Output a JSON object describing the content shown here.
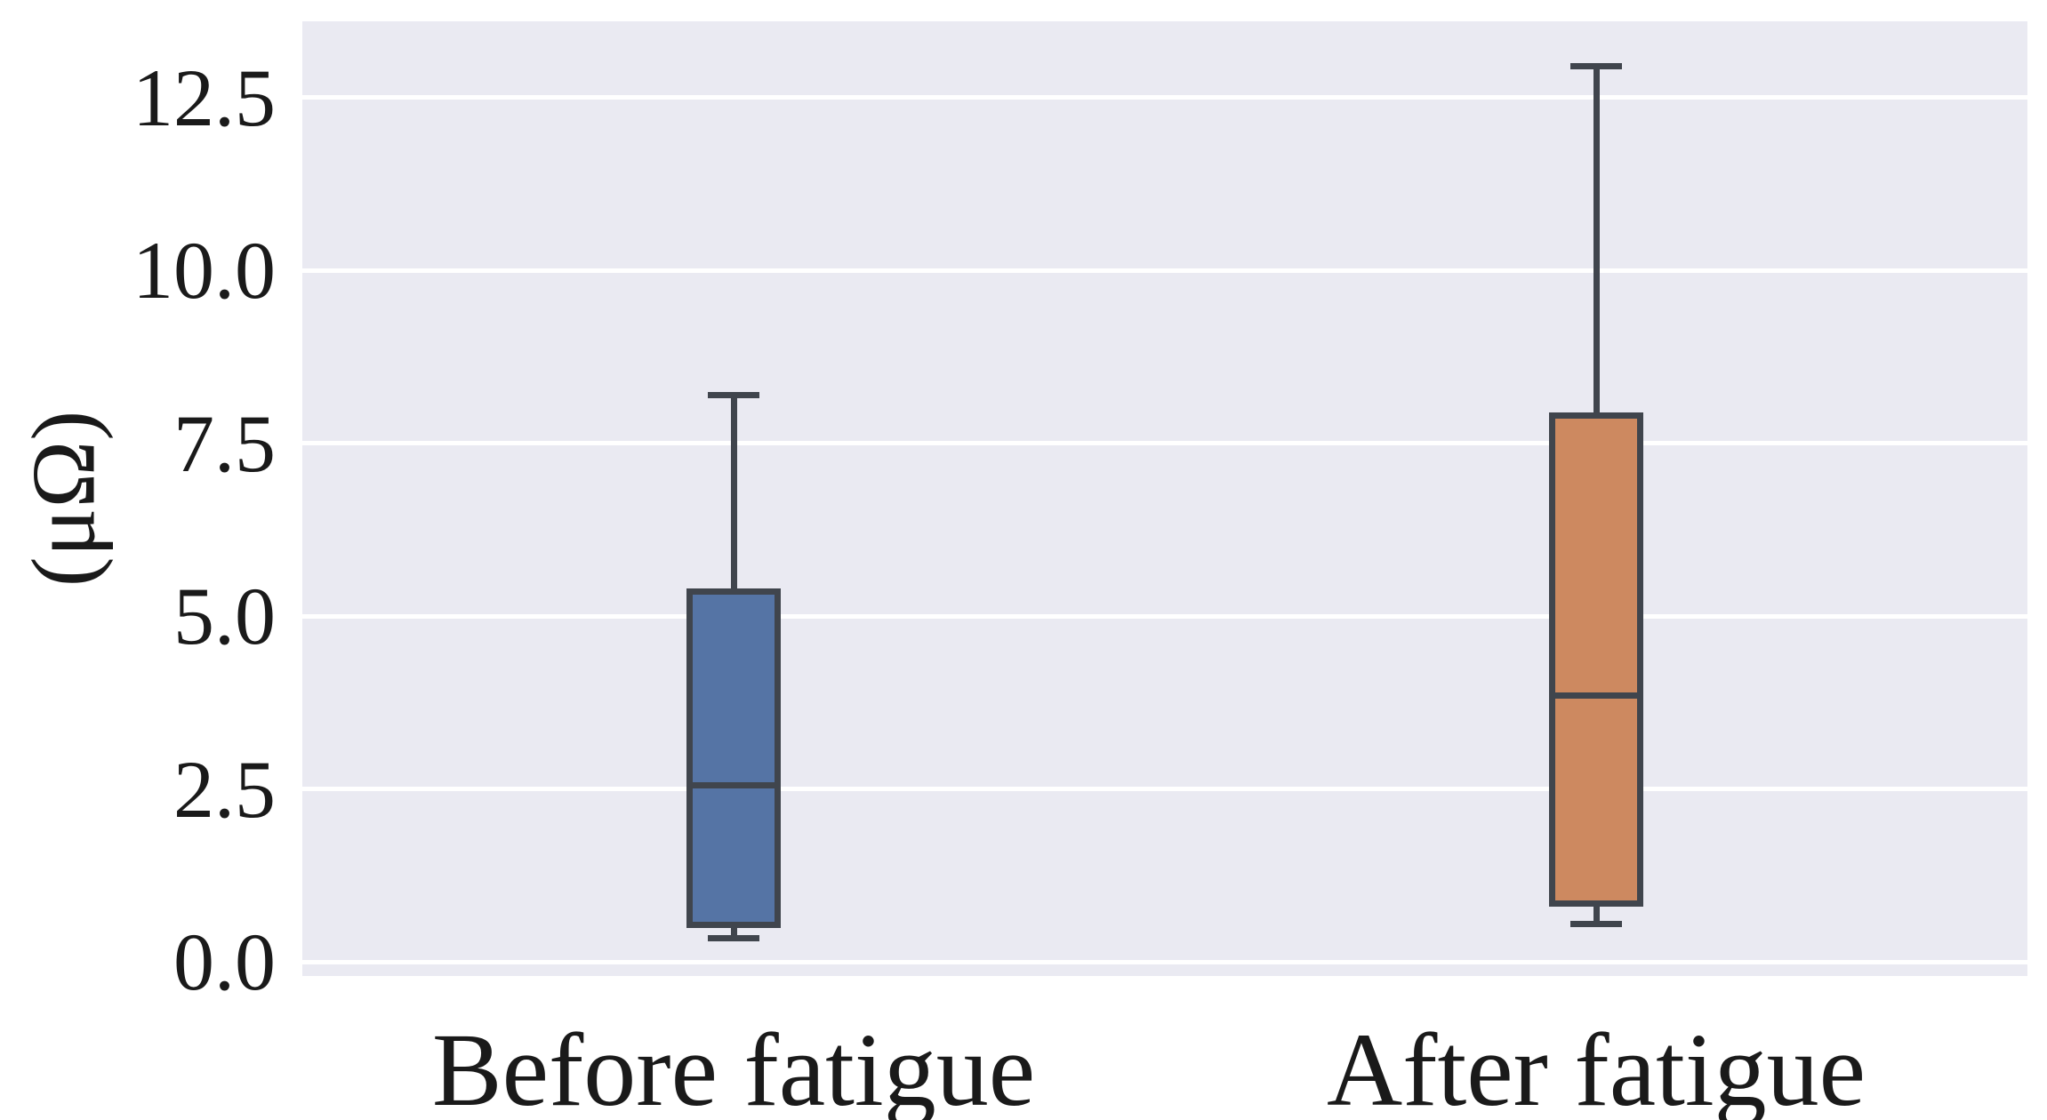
{
  "figure": {
    "background": "#ffffff"
  },
  "chart_data": {
    "type": "box",
    "title": "",
    "xlabel": "",
    "ylabel": "(μΩ)",
    "categories": [
      "Before fatigue",
      "After fatigue"
    ],
    "yticks": [
      0.0,
      2.5,
      5.0,
      7.5,
      10.0,
      12.5
    ],
    "ytick_labels": [
      "0.0",
      "2.5",
      "5.0",
      "7.5",
      "10.0",
      "12.5"
    ],
    "ylim": [
      -0.2,
      13.6
    ],
    "grid": true,
    "legend": "none",
    "plot_background": "#eaeaf2",
    "gridline_color": "#ffffff",
    "line_color": "#40454d",
    "text_color": "#1a1a1a",
    "series": [
      {
        "name": "Before fatigue",
        "color": "#5574a5",
        "whisker_low": 0.35,
        "q1": 0.5,
        "median": 2.55,
        "q3": 5.4,
        "whisker_high": 8.2
      },
      {
        "name": "After fatigue",
        "color": "#cd8960",
        "whisker_low": 0.55,
        "q1": 0.8,
        "median": 3.85,
        "q3": 7.95,
        "whisker_high": 12.95
      }
    ]
  }
}
